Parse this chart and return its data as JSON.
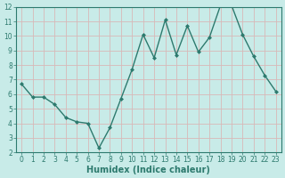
{
  "x": [
    0,
    1,
    2,
    3,
    4,
    5,
    6,
    7,
    8,
    9,
    10,
    11,
    12,
    13,
    14,
    15,
    16,
    17,
    18,
    19,
    20,
    21,
    22,
    23
  ],
  "y": [
    6.7,
    5.8,
    5.8,
    5.3,
    4.4,
    4.1,
    4.0,
    2.3,
    3.7,
    5.7,
    7.7,
    10.1,
    8.5,
    11.1,
    8.7,
    10.7,
    8.9,
    9.9,
    12.1,
    12.1,
    10.1,
    8.6,
    7.3,
    6.2
  ],
  "line_color": "#2d7a6e",
  "marker": "D",
  "marker_size": 2,
  "bg_color": "#c8ebe8",
  "grid_color": "#d8b8b8",
  "xlabel": "Humidex (Indice chaleur)",
  "xlabel_fontsize": 7,
  "xlim": [
    -0.5,
    23.5
  ],
  "ylim": [
    2,
    12
  ],
  "yticks": [
    2,
    3,
    4,
    5,
    6,
    7,
    8,
    9,
    10,
    11,
    12
  ],
  "xticks": [
    0,
    1,
    2,
    3,
    4,
    5,
    6,
    7,
    8,
    9,
    10,
    11,
    12,
    13,
    14,
    15,
    16,
    17,
    18,
    19,
    20,
    21,
    22,
    23
  ],
  "tick_fontsize": 5.5,
  "tick_color": "#2d7a6e",
  "axis_color": "#2d7a6e",
  "line_width": 1.0
}
